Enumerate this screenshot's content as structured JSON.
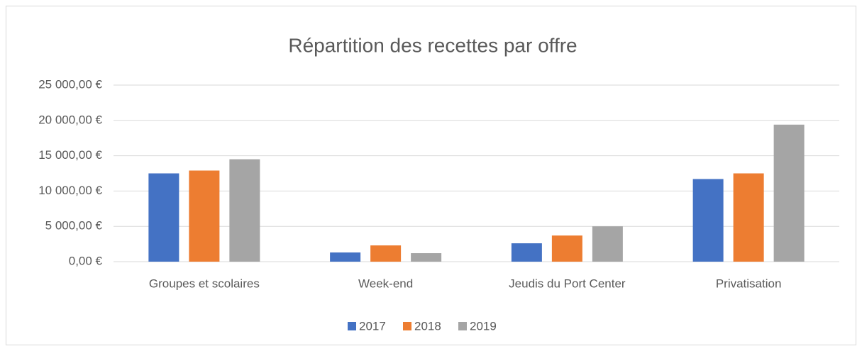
{
  "chart_data": {
    "type": "bar",
    "title": "Répartition des recettes par offre",
    "categories": [
      "Groupes et scolaires",
      "Week-end",
      "Jeudis du Port Center",
      "Privatisation"
    ],
    "series": [
      {
        "name": "2017",
        "color": "#4472c4",
        "values": [
          12500,
          1300,
          2600,
          11700
        ]
      },
      {
        "name": "2018",
        "color": "#ed7d31",
        "values": [
          12900,
          2300,
          3700,
          12500
        ]
      },
      {
        "name": "2019",
        "color": "#a5a5a5",
        "values": [
          14500,
          1200,
          5000,
          19400
        ]
      }
    ],
    "ylim": [
      0,
      25000
    ],
    "yticks": [
      {
        "value": 0,
        "label": "0,00 €"
      },
      {
        "value": 5000,
        "label": "5 000,00 €"
      },
      {
        "value": 10000,
        "label": "10 000,00 €"
      },
      {
        "value": 15000,
        "label": "15 000,00 €"
      },
      {
        "value": 20000,
        "label": "20 000,00 €"
      },
      {
        "value": 25000,
        "label": "25 000,00 €"
      }
    ],
    "grid": true,
    "legend": "bottom"
  }
}
